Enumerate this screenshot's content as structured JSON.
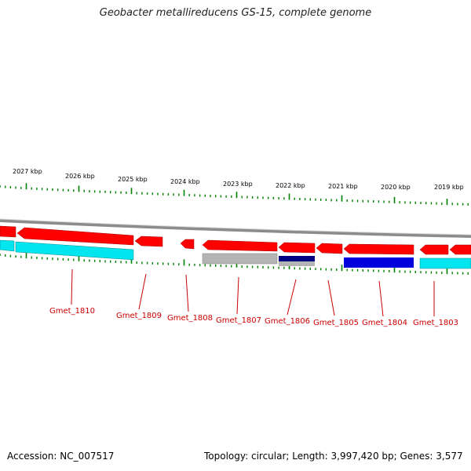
{
  "title": "Geobacter metallireducens GS-15, complete genome",
  "footer": {
    "accession": "Accession: NC_007517",
    "summary": "Topology: circular; Length: 3,997,420 bp; Genes: 3,577"
  },
  "kbp_labels": [
    "2027 kbp",
    "2026 kbp",
    "2025 kbp",
    "2024 kbp",
    "2023 kbp",
    "2022 kbp",
    "2021 kbp",
    "2020 kbp",
    "2019 kbp"
  ],
  "gene_labels": [
    "Gmet_1810",
    "Gmet_1809",
    "Gmet_1808",
    "Gmet_1807",
    "Gmet_1806",
    "Gmet_1805",
    "Gmet_1804",
    "Gmet_1803"
  ],
  "colors": {
    "gene": "#ff0000",
    "gene_dark": "#c80000",
    "cyan": "#00e5ee",
    "gray": "#b4b4b4",
    "navy": "#000080",
    "blue": "#0000dd",
    "tick": "#008000",
    "backbone": "#888888"
  }
}
